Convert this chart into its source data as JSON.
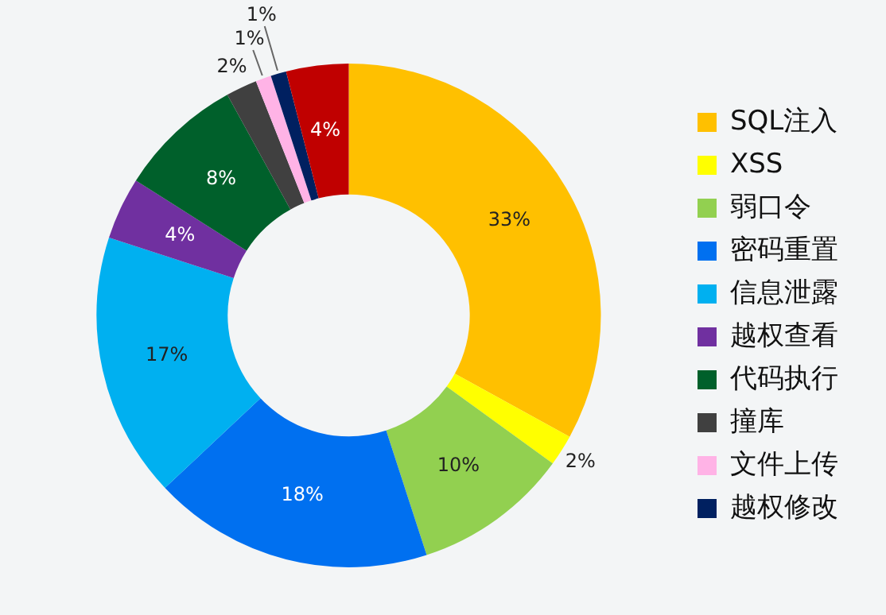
{
  "chart_data": {
    "type": "donut",
    "categories": [
      "SQL注入",
      "XSS",
      "弱口令",
      "密码重置",
      "信息泄露",
      "越权查看",
      "代码执行",
      "撞库",
      "文件上传",
      "越权修改",
      null
    ],
    "values": [
      33,
      2,
      10,
      18,
      17,
      4,
      8,
      2,
      1,
      1,
      4
    ],
    "value_labels": [
      "33%",
      "2%",
      "10%",
      "18%",
      "17%",
      "4%",
      "8%",
      "2%",
      "1%",
      "1%",
      "4%"
    ],
    "colors": [
      "#ffc000",
      "#ffff00",
      "#92d050",
      "#0070f0",
      "#00b0f0",
      "#7030a0",
      "#00602b",
      "#404040",
      "#ffb3e6",
      "#002060",
      "#c00000"
    ],
    "legend": "right"
  }
}
